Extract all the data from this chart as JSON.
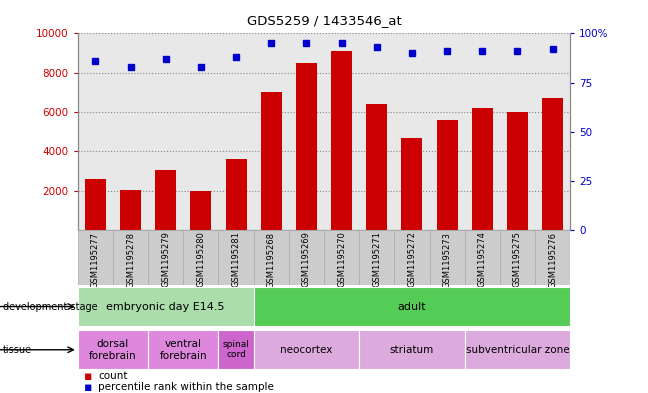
{
  "title": "GDS5259 / 1433546_at",
  "samples": [
    "GSM1195277",
    "GSM1195278",
    "GSM1195279",
    "GSM1195280",
    "GSM1195281",
    "GSM1195268",
    "GSM1195269",
    "GSM1195270",
    "GSM1195271",
    "GSM1195272",
    "GSM1195273",
    "GSM1195274",
    "GSM1195275",
    "GSM1195276"
  ],
  "counts": [
    2600,
    2050,
    3050,
    2000,
    3600,
    7000,
    8500,
    9100,
    6400,
    4700,
    5600,
    6200,
    6000,
    6700
  ],
  "percentiles": [
    86,
    83,
    87,
    83,
    88,
    95,
    95,
    95,
    93,
    90,
    91,
    91,
    91,
    92
  ],
  "bar_color": "#cc0000",
  "dot_color": "#0000cc",
  "ylim_left": [
    0,
    10000
  ],
  "ylim_right": [
    0,
    100
  ],
  "yticks_left": [
    2000,
    4000,
    6000,
    8000,
    10000
  ],
  "yticks_right": [
    0,
    25,
    50,
    75,
    100
  ],
  "grid_color": "#555555",
  "plot_bg": "#e8e8e8",
  "dev_stage_groups": [
    {
      "label": "embryonic day E14.5",
      "start": 0,
      "end": 4,
      "color": "#aaddaa"
    },
    {
      "label": "adult",
      "start": 5,
      "end": 13,
      "color": "#55cc55"
    }
  ],
  "tissue_groups": [
    {
      "label": "dorsal\nforebrain",
      "start": 0,
      "end": 1,
      "color": "#dd88dd"
    },
    {
      "label": "ventral\nforebrain",
      "start": 2,
      "end": 3,
      "color": "#dd88dd"
    },
    {
      "label": "spinal\ncord",
      "start": 4,
      "end": 4,
      "color": "#cc66cc"
    },
    {
      "label": "neocortex",
      "start": 5,
      "end": 7,
      "color": "#ddaadd"
    },
    {
      "label": "striatum",
      "start": 8,
      "end": 10,
      "color": "#ddaadd"
    },
    {
      "label": "subventricular zone",
      "start": 11,
      "end": 13,
      "color": "#ddaadd"
    }
  ],
  "sample_box_color": "#cccccc",
  "sample_box_edge": "#aaaaaa"
}
